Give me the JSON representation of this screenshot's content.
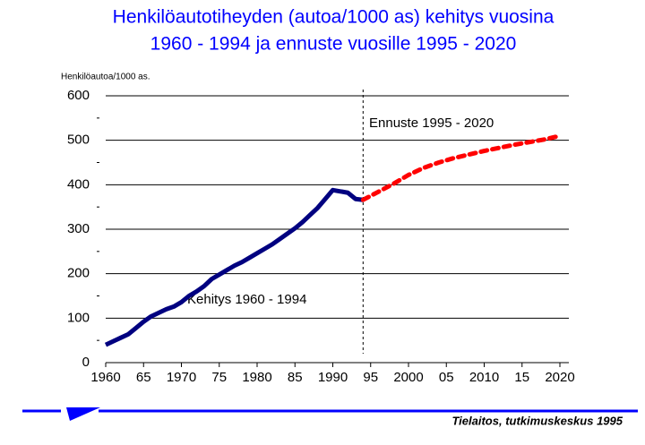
{
  "chart_data": {
    "type": "line",
    "title": "Henkilöautotiheyden (autoa/1000 as) kehitys vuosina",
    "subtitle": "1960 - 1994 ja ennuste vuosille 1995 - 2020",
    "y_label": "Henkilöautoa/1000 as.",
    "xlim": [
      1960,
      2020
    ],
    "ylim": [
      0,
      600
    ],
    "xticks": [
      1960,
      {
        "value": 1965,
        "label": "65"
      },
      1970,
      {
        "value": 1975,
        "label": "75"
      },
      1980,
      {
        "value": 1985,
        "label": "85"
      },
      1990,
      {
        "value": 1995,
        "label": "95"
      },
      2000,
      {
        "value": 2005,
        "label": "05"
      },
      2010,
      {
        "value": 2015,
        "label": "15"
      },
      2020
    ],
    "yticks": [
      0,
      100,
      200,
      300,
      400,
      500,
      600
    ],
    "yminor_ticks": [
      50,
      150,
      250,
      350,
      450,
      550
    ],
    "grid": true,
    "forecast_start": 1994,
    "series": [
      {
        "name": "Kehitys 1960 - 1994",
        "color": "#000080",
        "style": "solid",
        "x": [
          1960,
          1961,
          1962,
          1963,
          1964,
          1965,
          1966,
          1967,
          1968,
          1969,
          1970,
          1971,
          1972,
          1973,
          1974,
          1975,
          1976,
          1977,
          1978,
          1979,
          1980,
          1981,
          1982,
          1983,
          1984,
          1985,
          1986,
          1987,
          1988,
          1989,
          1990,
          1991,
          1992,
          1993,
          1994
        ],
        "values": [
          40,
          48,
          56,
          64,
          78,
          92,
          104,
          112,
          120,
          126,
          136,
          150,
          160,
          172,
          188,
          198,
          208,
          218,
          226,
          236,
          246,
          256,
          266,
          278,
          290,
          302,
          316,
          332,
          348,
          368,
          388,
          385,
          382,
          368,
          366
        ]
      },
      {
        "name": "Ennuste 1995 - 2020",
        "color": "#ff0000",
        "style": "dashed",
        "x": [
          1994,
          1996,
          1998,
          2000,
          2002,
          2004,
          2006,
          2008,
          2010,
          2012,
          2014,
          2016,
          2018,
          2020
        ],
        "values": [
          366,
          384,
          402,
          422,
          438,
          450,
          460,
          468,
          476,
          483,
          490,
          496,
          502,
          510
        ]
      }
    ],
    "footer": "Tielaitos, tutkimuskeskus 1995"
  }
}
